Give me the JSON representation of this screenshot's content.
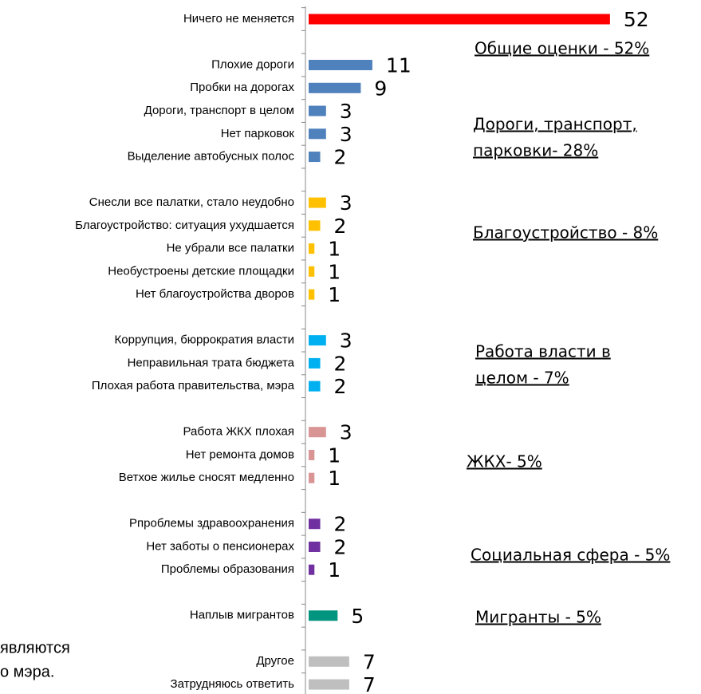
{
  "chart_data": {
    "type": "bar",
    "categories": [
      "Ничего не меняется",
      null,
      "Плохие дороги",
      "Пробки на дорогах",
      "Дороги, транспорт в целом",
      "Нет парковок",
      "Выделение автобусных полос",
      null,
      "Снесли все палатки, стало неудобно",
      "Благоустройство: ситуация ухудшается",
      "Не убрали все палатки",
      "Необустроены детские площадки",
      "Нет благоустройства дворов",
      null,
      "Коррупция, бюррократия власти",
      "Неправильная трата бюджета",
      "Плохая работа правительства, мэра",
      null,
      "Работа ЖКХ плохая",
      "Нет ремонта домов",
      "Ветхое жилье сносят медленно",
      null,
      "Рпроблемы здравоохранения",
      "Нет заботы о пенсионерах",
      "Проблемы образования",
      null,
      "Наплыв мигрантов",
      null,
      "Другое",
      "Затрудняюсь ответить"
    ],
    "values": [
      52,
      null,
      11,
      9,
      3,
      3,
      2,
      null,
      3,
      2,
      1,
      1,
      1,
      null,
      3,
      2,
      2,
      null,
      3,
      1,
      1,
      null,
      2,
      2,
      1,
      null,
      5,
      null,
      7,
      7
    ],
    "colors": [
      "#ff0000",
      null,
      "#4f81bd",
      "#4f81bd",
      "#4f81bd",
      "#4f81bd",
      "#4f81bd",
      null,
      "#ffc000",
      "#ffc000",
      "#ffc000",
      "#ffc000",
      "#ffc000",
      null,
      "#00b0f0",
      "#00b0f0",
      "#00b0f0",
      null,
      "#d99594",
      "#d99594",
      "#d99594",
      null,
      "#7030a0",
      "#7030a0",
      "#7030a0",
      null,
      "#00957f",
      null,
      "#bfbfbf",
      "#bfbfbf"
    ],
    "xlim": [
      0,
      60
    ],
    "annotations": [
      [
        "Общие оценки - 52%"
      ],
      [
        "Дороги, транспорт,",
        "парковки- 28%"
      ],
      [
        "Благоустройство - 8%"
      ],
      [
        "Работа власти в",
        "целом - 7%"
      ],
      [
        "ЖКХ- 5%"
      ],
      [
        "Социальная сфера - 5%"
      ],
      [
        "Мигранты - 5%"
      ]
    ],
    "background_text": [
      "являются",
      "о мэра."
    ]
  }
}
